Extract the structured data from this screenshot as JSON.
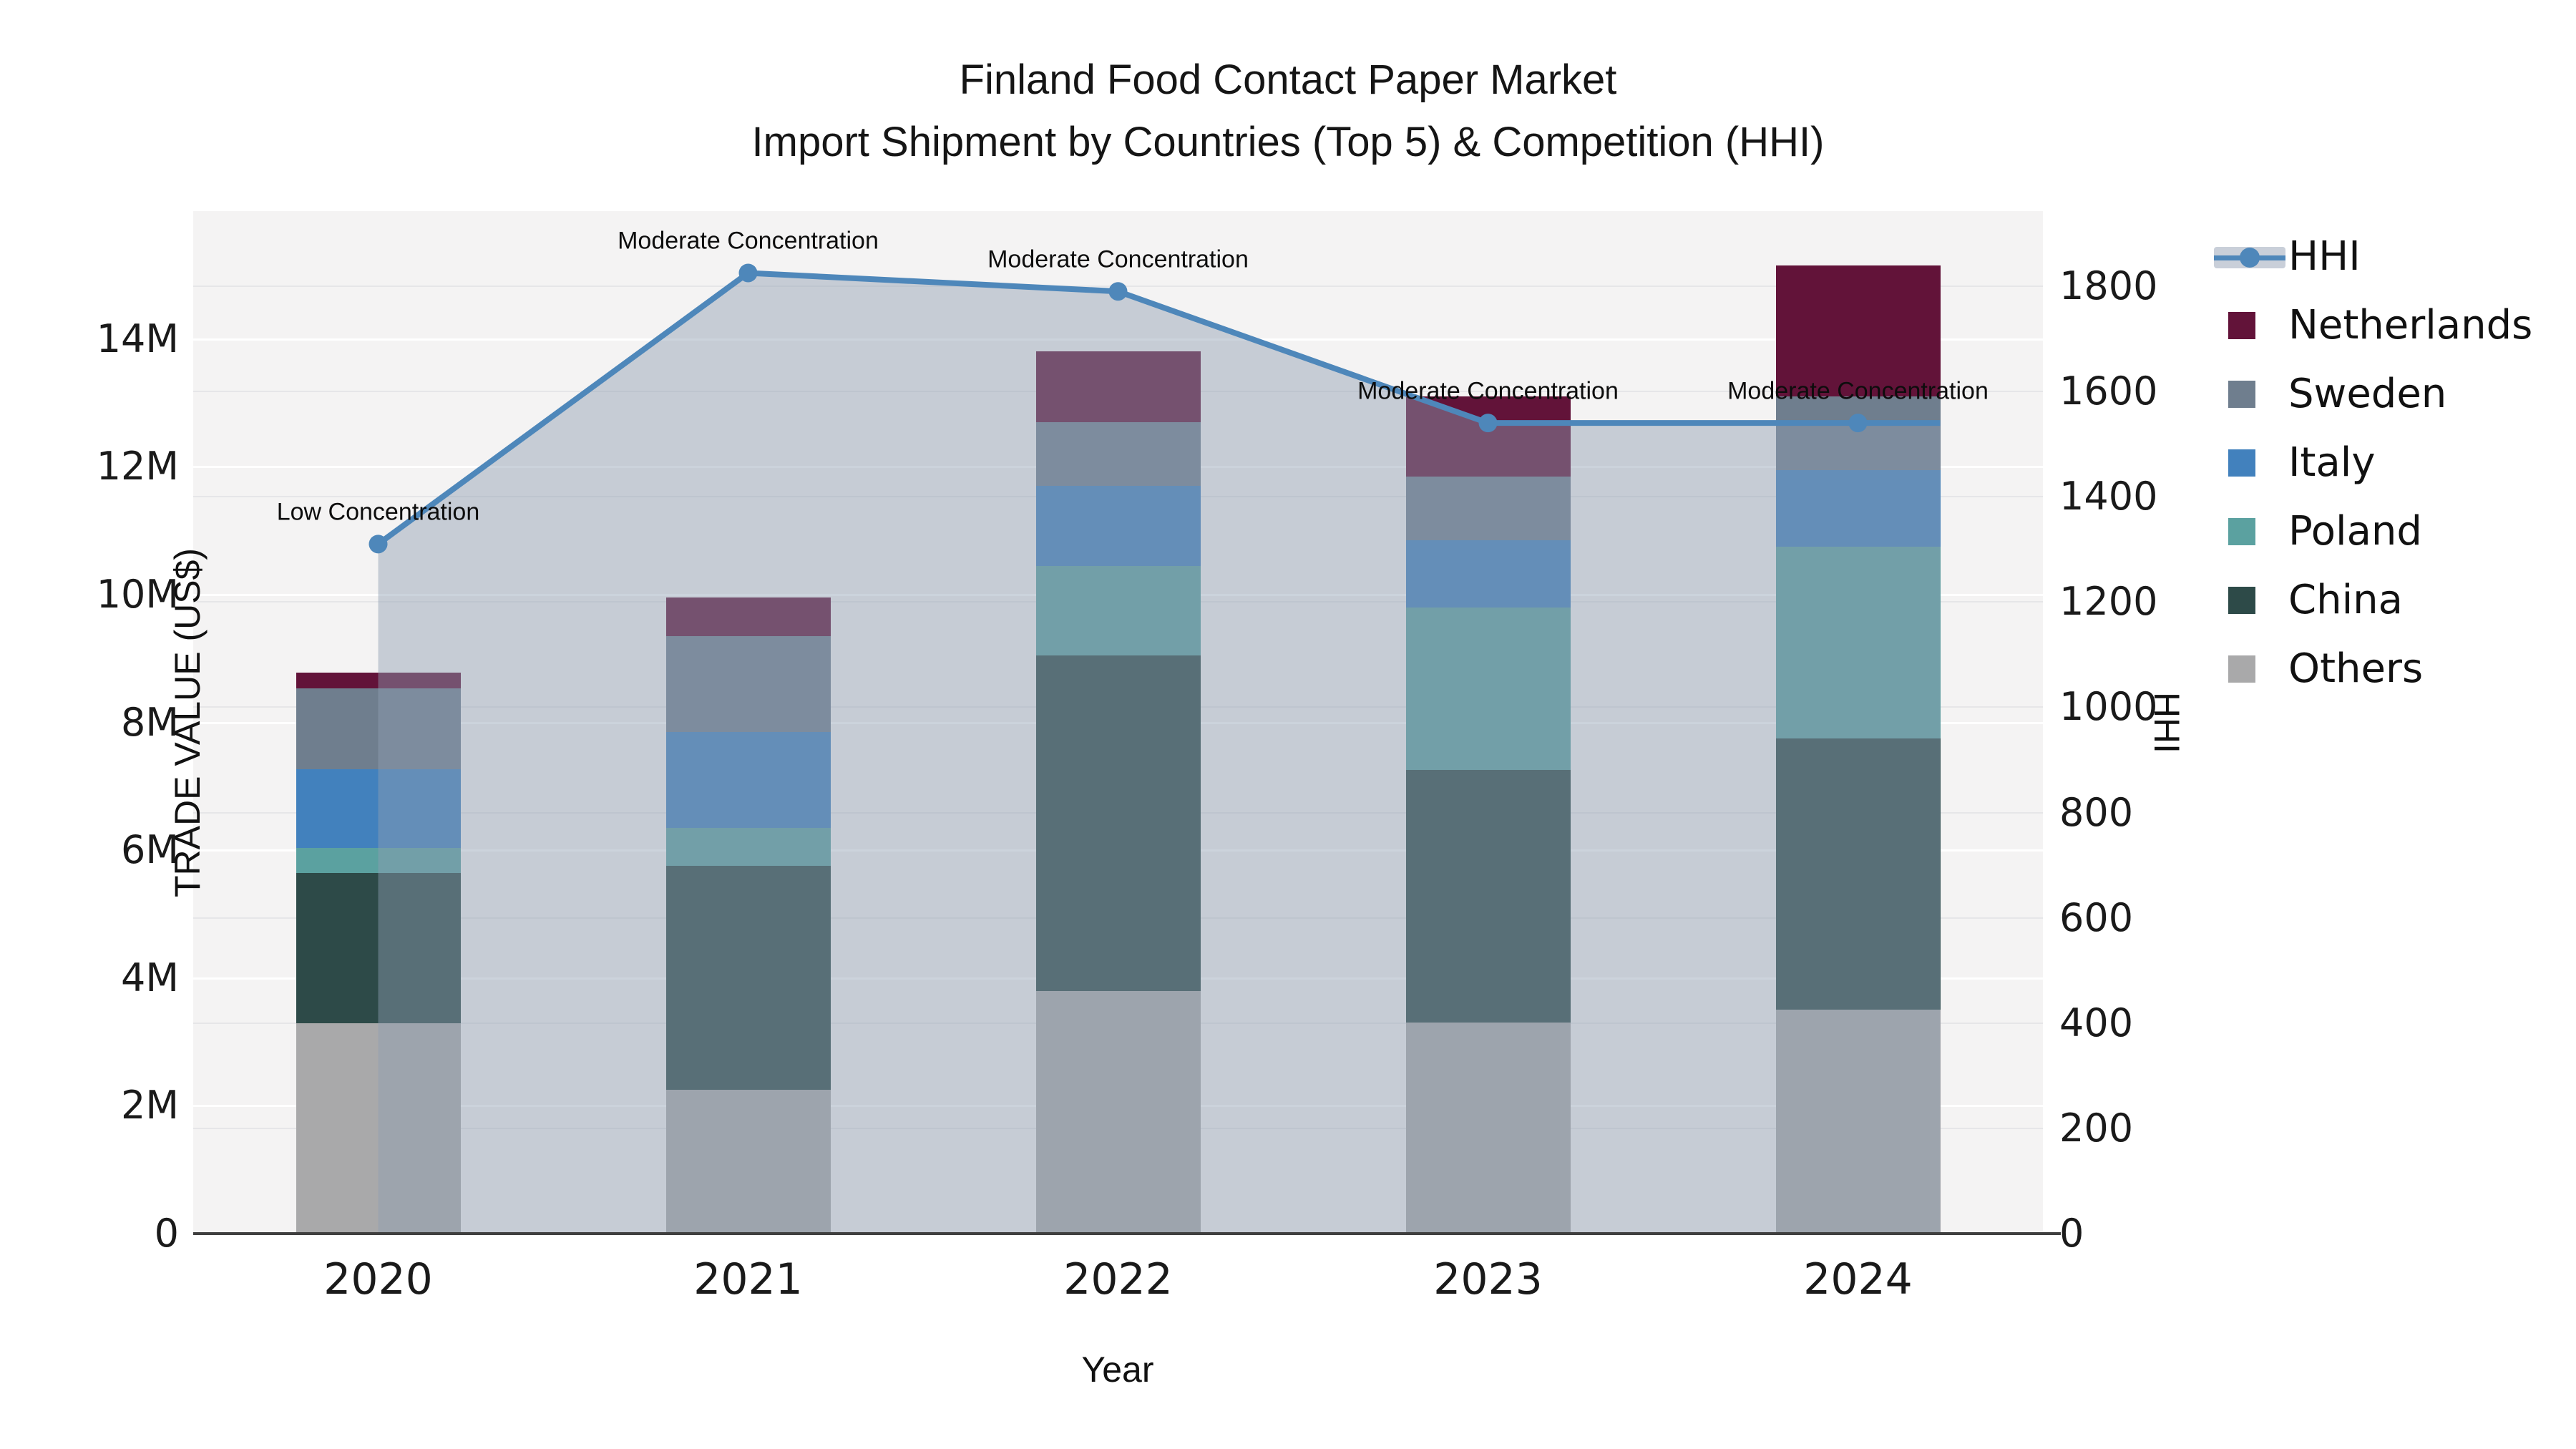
{
  "title": {
    "line1": "Finland Food Contact Paper Market",
    "line2": "Import Shipment by Countries (Top 5) & Competition (HHI)"
  },
  "axes": {
    "x": {
      "label": "Year",
      "categories": [
        "2020",
        "2021",
        "2022",
        "2023",
        "2024"
      ]
    },
    "left": {
      "label": "TRADE VALUE (US$)",
      "tick_values": [
        0,
        2,
        4,
        6,
        8,
        10,
        12,
        14
      ],
      "tick_labels": [
        "0",
        "2M",
        "4M",
        "6M",
        "8M",
        "10M",
        "12M",
        "14M"
      ]
    },
    "right": {
      "label": "HHI",
      "tick_values": [
        0,
        200,
        400,
        600,
        800,
        1000,
        1200,
        1400,
        1600,
        1800
      ],
      "tick_labels": [
        "0",
        "200",
        "400",
        "600",
        "800",
        "1000",
        "1200",
        "1400",
        "1600",
        "1800"
      ]
    }
  },
  "legend": {
    "items": [
      "HHI",
      "Netherlands",
      "Sweden",
      "Italy",
      "Poland",
      "China",
      "Others"
    ]
  },
  "colors": {
    "Netherlands": "#621339",
    "Sweden": "#6f7e8e",
    "Italy": "#4281bd",
    "Poland": "#5ba1a0",
    "China": "#2d4a48",
    "Others": "#a9a9aa",
    "hhi_line": "#4e87ba",
    "hhi_area": "rgba(143,158,178,0.45)",
    "plot_bg": "#f4f3f3",
    "axis_line": "#3f3f3f"
  },
  "chart_data": {
    "type": "combo: stacked-bar + line-area",
    "categories": [
      "2020",
      "2021",
      "2022",
      "2023",
      "2024"
    ],
    "bar_unit": "million US$",
    "series": [
      {
        "name": "Netherlands",
        "values": [
          0.25,
          0.6,
          1.1,
          1.25,
          2.05
        ]
      },
      {
        "name": "Sweden",
        "values": [
          1.26,
          1.5,
          1.0,
          1.0,
          1.15
        ]
      },
      {
        "name": "Italy",
        "values": [
          1.23,
          1.5,
          1.25,
          1.05,
          1.2
        ]
      },
      {
        "name": "Poland",
        "values": [
          0.4,
          0.6,
          1.4,
          2.55,
          3.0
        ]
      },
      {
        "name": "China",
        "values": [
          2.35,
          3.5,
          5.25,
          3.95,
          4.25
        ]
      },
      {
        "name": "Others",
        "values": [
          3.29,
          2.25,
          3.8,
          3.3,
          3.5
        ]
      }
    ],
    "bar_totals_approx": [
      8.78,
      9.95,
      13.8,
      13.1,
      15.15
    ],
    "hhi": {
      "name": "HHI",
      "values": [
        1310,
        1825,
        1790,
        1540,
        1540
      ],
      "annotations": [
        "Low Concentration",
        "Moderate Concentration",
        "Moderate Concentration",
        "Moderate Concentration",
        "Moderate Concentration"
      ]
    },
    "title": "Finland Food Contact Paper Market — Import Shipment by Countries (Top 5) & Competition (HHI)",
    "xlabel": "Year",
    "ylabel_left": "TRADE VALUE (US$)",
    "ylabel_right": "HHI",
    "ylim_left_millions": [
      0,
      16
    ],
    "ylim_right": [
      0,
      1943
    ],
    "grid": "both-axes horizontal",
    "legend_position": "right"
  }
}
